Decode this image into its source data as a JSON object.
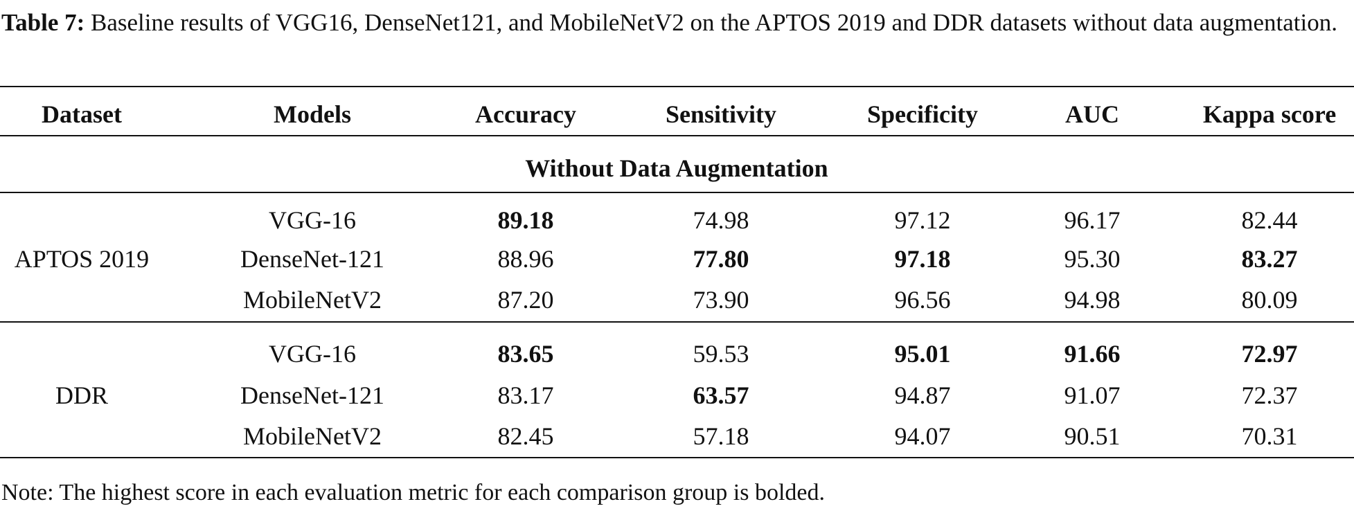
{
  "caption": {
    "label": "Table 7:",
    "text": "Baseline results of VGG16, DenseNet121, and MobileNetV2 on the APTOS 2019 and DDR datasets without data augmentation."
  },
  "table": {
    "header": [
      "Dataset",
      "Models",
      "Accuracy",
      "Sensitivity",
      "Specificity",
      "AUC",
      "Kappa score"
    ],
    "section": "Without Data Augmentation",
    "groups": [
      {
        "dataset": "APTOS 2019",
        "rows": [
          {
            "model": "VGG-16",
            "values": [
              "89.18",
              "74.98",
              "97.12",
              "96.17",
              "82.44"
            ],
            "bold": [
              0
            ]
          },
          {
            "model": "DenseNet-121",
            "values": [
              "88.96",
              "77.80",
              "97.18",
              "95.30",
              "83.27"
            ],
            "bold": [
              1,
              2,
              4
            ]
          },
          {
            "model": "MobileNetV2",
            "values": [
              "87.20",
              "73.90",
              "96.56",
              "94.98",
              "80.09"
            ],
            "bold": []
          }
        ]
      },
      {
        "dataset": "DDR",
        "rows": [
          {
            "model": "VGG-16",
            "values": [
              "83.65",
              "59.53",
              "95.01",
              "91.66",
              "72.97"
            ],
            "bold": [
              0,
              2,
              3,
              4
            ]
          },
          {
            "model": "DenseNet-121",
            "values": [
              "83.17",
              "63.57",
              "94.87",
              "91.07",
              "72.37"
            ],
            "bold": [
              1
            ]
          },
          {
            "model": "MobileNetV2",
            "values": [
              "82.45",
              "57.18",
              "94.07",
              "90.51",
              "70.31"
            ],
            "bold": []
          }
        ]
      }
    ]
  },
  "note": "Note: The highest score in each evaluation metric for each comparison group is bolded."
}
